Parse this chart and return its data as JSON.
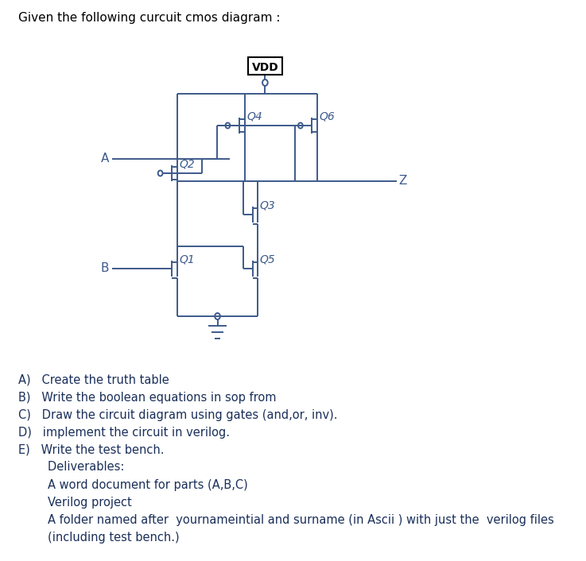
{
  "title": "Given the following curcuit cmos diagram :",
  "circuit_color": "#3d5a8a",
  "bg_color": "#ffffff",
  "text_color": "#1a2f5a",
  "items": [
    "A)   Create the truth table",
    "B)   Write the boolean equations in sop from",
    "C)   Draw the circuit diagram using gates (and,or, inv).",
    "D)   implement the circuit in verilog.",
    "E)   Write the test bench.",
    "        Deliverables:",
    "        A word document for parts (A,B,C)",
    "        Verilog project",
    "        A folder named after  yournameintial and surname (in Ascii ) with just the  verilog files",
    "        (including test bench.)"
  ]
}
